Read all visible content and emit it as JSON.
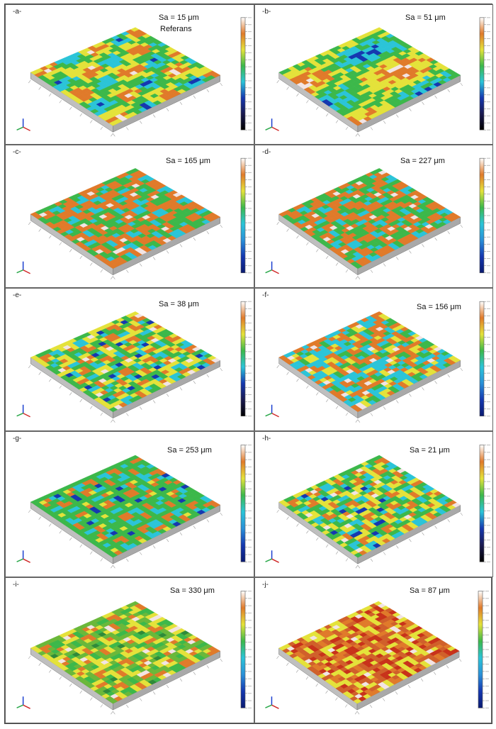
{
  "panels": [
    {
      "label": "-a-",
      "sa": "Sa = 15 μm",
      "note": "Referans",
      "palette": "blue-orange",
      "cbar": "black"
    },
    {
      "label": "-b-",
      "sa": "Sa = 51 μm",
      "note": "",
      "palette": "blue-orange",
      "cbar": "black"
    },
    {
      "label": "-c-",
      "sa": "Sa = 165 μm",
      "note": "",
      "palette": "green-orange",
      "cbar": "blue"
    },
    {
      "label": "-d-",
      "sa": "Sa = 227 μm",
      "note": "",
      "palette": "green-orange",
      "cbar": "blue"
    },
    {
      "label": "-e-",
      "sa": "Sa = 38 μm",
      "note": "",
      "palette": "blue-orange",
      "cbar": "black"
    },
    {
      "label": "-f-",
      "sa": "Sa = 156 μm",
      "note": "",
      "palette": "cyan-orange",
      "cbar": "blue"
    },
    {
      "label": "-g-",
      "sa": "Sa = 253 μm",
      "note": "",
      "palette": "green-cyan",
      "cbar": "blue"
    },
    {
      "label": "-h-",
      "sa": "Sa = 21 μm",
      "note": "",
      "palette": "blue-orange",
      "cbar": "black"
    },
    {
      "label": "-i-",
      "sa": "Sa = 330 μm",
      "note": "",
      "palette": "green-yellow",
      "cbar": "blue"
    },
    {
      "label": "-j-",
      "sa": "Sa = 87 μm",
      "note": "",
      "palette": "orange-red",
      "cbar": "blue"
    }
  ],
  "colors": {
    "border": "#666666",
    "deep_blue": "#1538b0",
    "cyan": "#2bc4d8",
    "green": "#3cb84a",
    "yellow": "#e4e23a",
    "orange": "#e07a2a",
    "red": "#c8321a",
    "white_peak": "#f2e4e4"
  }
}
